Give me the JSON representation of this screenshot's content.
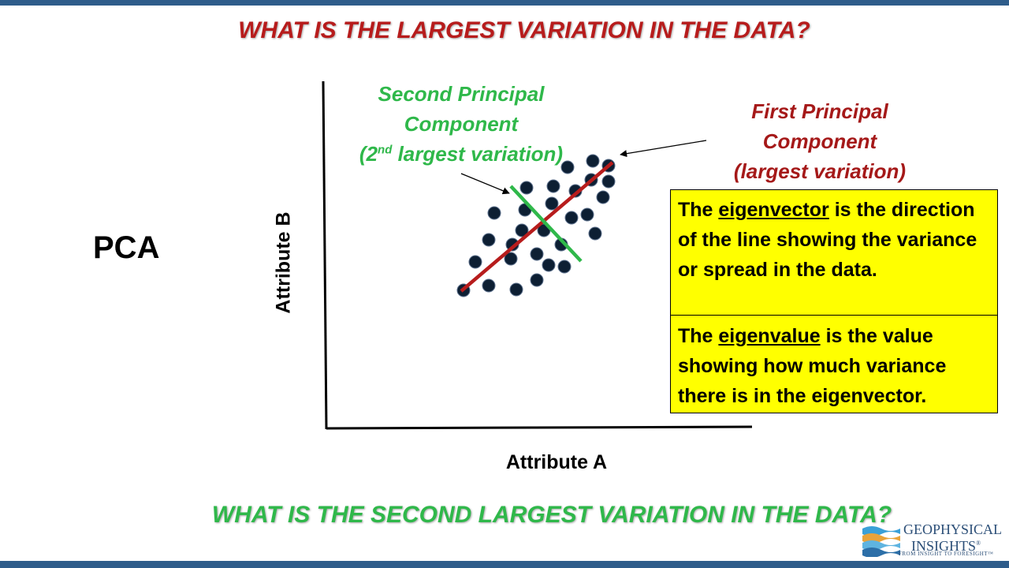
{
  "title_top": "WHAT IS THE LARGEST VARIATION IN THE DATA?",
  "title_bottom": "WHAT IS THE SECOND LARGEST VARIATION IN THE DATA?",
  "pca_label": "PCA",
  "axes": {
    "y_label": "Attribute B",
    "x_label": "Attribute A"
  },
  "second_component": {
    "line1": "Second Principal",
    "line2": "Component",
    "line3_prefix": "(2",
    "line3_sup": "nd",
    "line3_suffix": " largest variation)",
    "color": "#2fb84a"
  },
  "first_component": {
    "line1": "First Principal",
    "line2": "Component",
    "line3": "(largest variation)",
    "color": "#a51919"
  },
  "info_box": {
    "background": "#ffff00",
    "eigenvector": {
      "prefix": "The ",
      "term": "eigenvector",
      "suffix": " is the direction of the line showing the variance or spread in the data."
    },
    "eigenvalue": {
      "prefix": "The ",
      "term": "eigenvalue",
      "suffix": " is the value showing how much variance there is in the eigenvector."
    }
  },
  "logo": {
    "name_line1": "GEOPHYSICAL",
    "name_line2": "INSIGHTS",
    "reg_mark": "®",
    "tagline": "FROM INSIGHT TO FORESIGHT™"
  },
  "colors": {
    "bar": "#2e5c8a",
    "title_top": "#b71c1c",
    "title_bottom": "#2fb84a",
    "points": "#0d1f33"
  }
}
